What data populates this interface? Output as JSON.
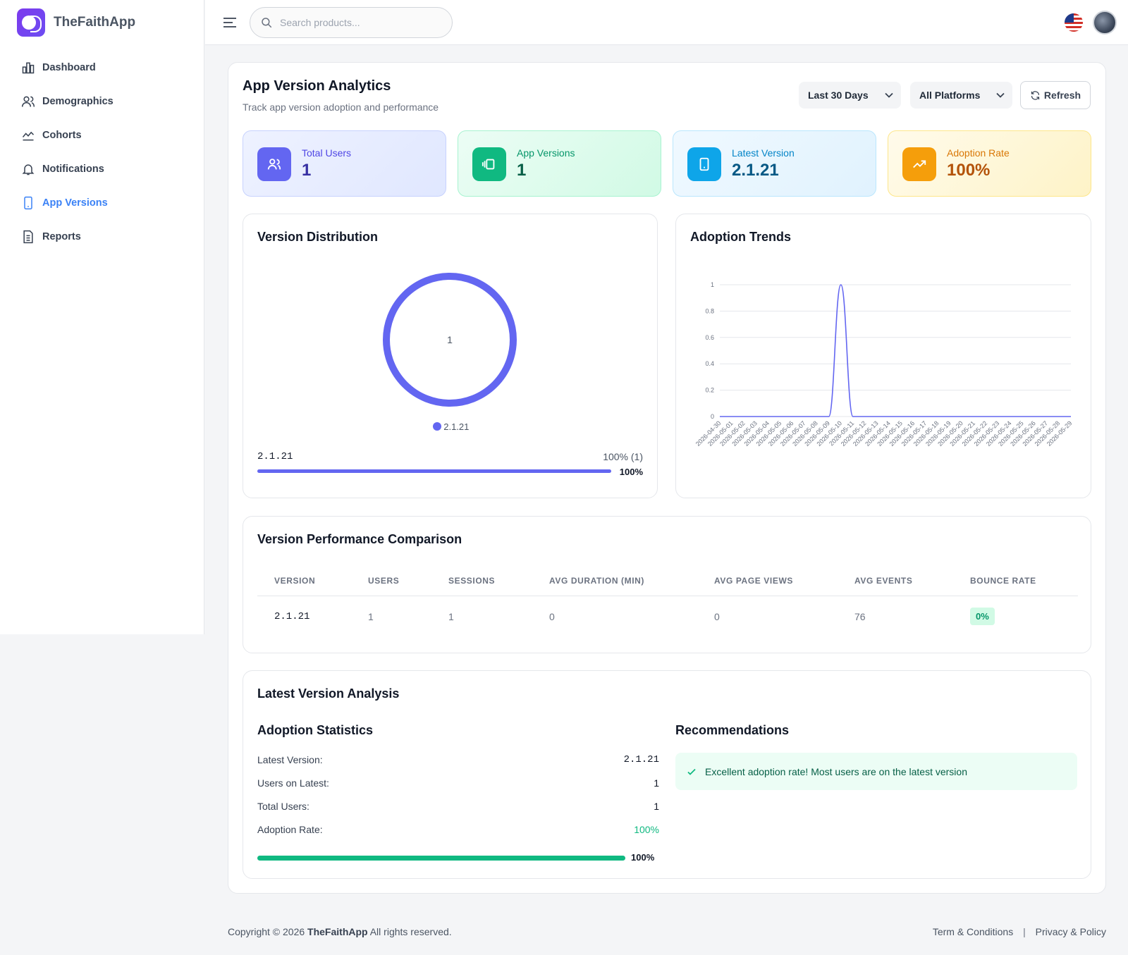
{
  "brand": {
    "name": "TheFaithApp"
  },
  "sidebar": {
    "items": [
      {
        "label": "Dashboard"
      },
      {
        "label": "Demographics"
      },
      {
        "label": "Cohorts"
      },
      {
        "label": "Notifications"
      },
      {
        "label": "App Versions",
        "active": true
      },
      {
        "label": "Reports"
      }
    ]
  },
  "search": {
    "placeholder": "Search products..."
  },
  "page": {
    "title": "App Version Analytics",
    "subtitle": "Track app version adoption and performance"
  },
  "filters": {
    "period": "Last 30 Days",
    "platform": "All Platforms",
    "refresh_label": "Refresh"
  },
  "stats": [
    {
      "label": "Total Users",
      "value": "1",
      "color": "#6366f1"
    },
    {
      "label": "App Versions",
      "value": "1",
      "color": "#10b981"
    },
    {
      "label": "Latest Version",
      "value": "2.1.21",
      "color": "#0ea5e9"
    },
    {
      "label": "Adoption Rate",
      "value": "100%",
      "color": "#f59e0b"
    }
  ],
  "distribution": {
    "title": "Version Distribution",
    "center_label": "1",
    "legend": "2.1.21",
    "version": "2.1.21",
    "share_text": "100% (1)",
    "percent_label": "100%",
    "percent": 100,
    "color": "#6366f1"
  },
  "trends": {
    "title": "Adoption Trends"
  },
  "chart_data": {
    "type": "line",
    "x": [
      "2026-04-30",
      "2026-05-01",
      "2026-05-02",
      "2026-05-03",
      "2026-05-04",
      "2026-05-05",
      "2026-05-06",
      "2026-05-07",
      "2026-05-08",
      "2026-05-09",
      "2026-05-10",
      "2026-05-11",
      "2026-05-12",
      "2026-05-13",
      "2026-05-14",
      "2026-05-15",
      "2026-05-16",
      "2026-05-17",
      "2026-05-18",
      "2026-05-19",
      "2026-05-20",
      "2026-05-21",
      "2026-05-22",
      "2026-05-23",
      "2026-05-24",
      "2026-05-25",
      "2026-05-26",
      "2026-05-27",
      "2026-05-28",
      "2026-05-29"
    ],
    "series": [
      {
        "values": [
          0,
          0,
          0,
          0,
          0,
          0,
          0,
          0,
          0,
          0,
          1,
          0,
          0,
          0,
          0,
          0,
          0,
          0,
          0,
          0,
          0,
          0,
          0,
          0,
          0,
          0,
          0,
          0,
          0,
          0
        ],
        "color": "#6366f1"
      }
    ],
    "y_ticks": [
      "0",
      "0.2",
      "0.4",
      "0.6",
      "0.8",
      "1"
    ],
    "ylim": [
      0,
      1
    ],
    "grid": true
  },
  "performance": {
    "title": "Version Performance Comparison",
    "columns": [
      "VERSION",
      "USERS",
      "SESSIONS",
      "AVG DURATION (MIN)",
      "AVG PAGE VIEWS",
      "AVG EVENTS",
      "BOUNCE RATE"
    ],
    "rows": [
      {
        "version": "2.1.21",
        "users": "1",
        "sessions": "1",
        "avg_duration": "0",
        "avg_page_views": "0",
        "avg_events": "76",
        "bounce_rate": "0%"
      }
    ]
  },
  "analysis": {
    "title": "Latest Version Analysis",
    "stats_title": "Adoption Statistics",
    "latest_version_label": "Latest Version:",
    "latest_version": "2.1.21",
    "users_on_latest_label": "Users on Latest:",
    "users_on_latest": "1",
    "total_users_label": "Total Users:",
    "total_users": "1",
    "adoption_rate_label": "Adoption Rate:",
    "adoption_rate": "100%",
    "progress_label": "100%",
    "progress": 100,
    "recommendations_title": "Recommendations",
    "recommendation": "Excellent adoption rate! Most users are on the latest version"
  },
  "footer": {
    "copyright": "Copyright © 2026",
    "brand": "TheFaithApp",
    "rights": "All rights reserved.",
    "terms": "Term & Conditions",
    "separator": "|",
    "privacy": "Privacy & Policy"
  }
}
